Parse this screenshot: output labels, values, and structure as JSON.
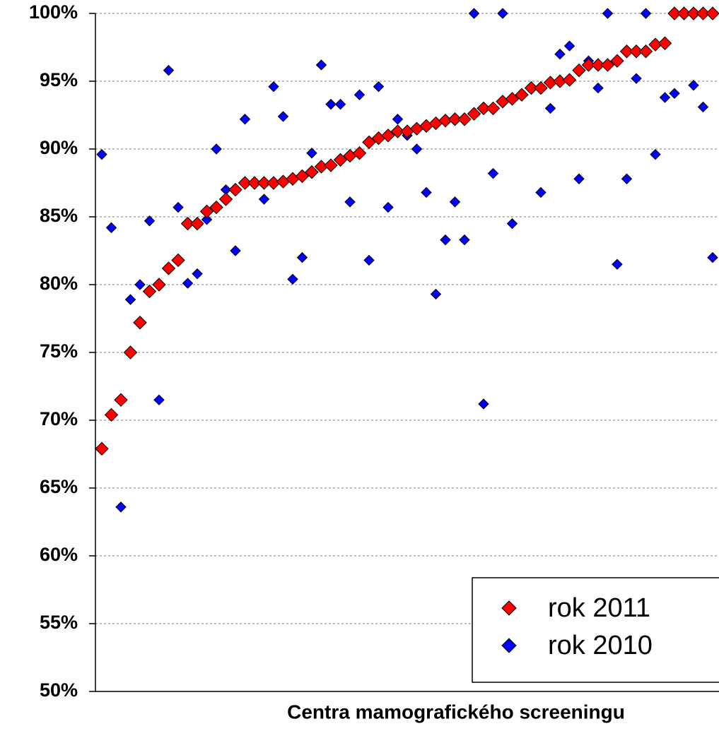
{
  "chart_data": {
    "type": "scatter",
    "xlabel": "Centra mamografického screeningu",
    "categories": [
      null,
      null,
      null,
      null,
      null,
      null,
      null,
      null,
      null,
      null,
      null,
      null,
      null,
      null,
      null,
      null,
      null,
      null,
      null,
      null,
      null,
      null,
      null,
      null,
      null,
      null,
      null,
      null,
      null,
      null,
      null,
      null,
      null,
      null,
      null,
      null,
      null,
      null,
      null,
      null,
      null,
      null,
      null,
      null,
      null,
      null,
      null,
      null,
      null,
      null,
      null,
      null,
      null,
      null,
      null,
      null,
      null,
      null,
      null,
      null,
      null,
      null,
      null,
      null,
      null
    ],
    "series": [
      {
        "name": "rok 2011",
        "color": "#ff0000",
        "values": [
          67.9,
          70.4,
          71.5,
          75.0,
          77.2,
          79.5,
          80.0,
          81.2,
          81.8,
          84.5,
          84.5,
          85.4,
          85.7,
          86.3,
          87.0,
          87.5,
          87.5,
          87.5,
          87.5,
          87.6,
          87.8,
          88.0,
          88.3,
          88.7,
          88.8,
          89.2,
          89.5,
          89.7,
          90.5,
          90.8,
          91.0,
          91.3,
          91.3,
          91.5,
          91.7,
          91.9,
          92.1,
          92.2,
          92.2,
          92.6,
          93.0,
          93.0,
          93.5,
          93.7,
          94.0,
          94.5,
          94.5,
          94.9,
          95.0,
          95.1,
          95.8,
          96.2,
          96.2,
          96.2,
          96.5,
          97.2,
          97.2,
          97.2,
          97.7,
          97.8,
          100,
          100,
          100,
          100,
          100
        ]
      },
      {
        "name": "rok 2010",
        "color": "#0000ff",
        "values": [
          89.6,
          84.2,
          63.6,
          78.9,
          80.0,
          84.7,
          71.5,
          95.8,
          85.7,
          80.1,
          80.8,
          84.8,
          90.0,
          87.0,
          82.5,
          92.2,
          null,
          86.3,
          94.6,
          92.4,
          80.4,
          82.0,
          89.7,
          96.2,
          93.3,
          93.3,
          86.1,
          94.0,
          81.8,
          94.6,
          85.7,
          92.2,
          91.0,
          90.0,
          86.8,
          79.3,
          83.3,
          86.1,
          83.3,
          100,
          71.2,
          88.2,
          100,
          84.5,
          null,
          null,
          86.8,
          93.0,
          97.0,
          97.6,
          87.8,
          96.5,
          94.5,
          100,
          81.5,
          87.8,
          95.2,
          100,
          89.6,
          93.8,
          94.1,
          null,
          94.7,
          93.1,
          82.0
        ]
      }
    ],
    "ylim": [
      50,
      100
    ],
    "yticks": [
      {
        "value": 50,
        "label": "50%"
      },
      {
        "value": 55,
        "label": "55%"
      },
      {
        "value": 60,
        "label": "60%"
      },
      {
        "value": 65,
        "label": "65%"
      },
      {
        "value": 70,
        "label": "70%"
      },
      {
        "value": 75,
        "label": "75%"
      },
      {
        "value": 80,
        "label": "80%"
      },
      {
        "value": 85,
        "label": "85%"
      },
      {
        "value": 90,
        "label": "90%"
      },
      {
        "value": 95,
        "label": "95%"
      },
      {
        "value": 100,
        "label": "100%"
      }
    ],
    "grid": true,
    "legend": "lower right"
  }
}
